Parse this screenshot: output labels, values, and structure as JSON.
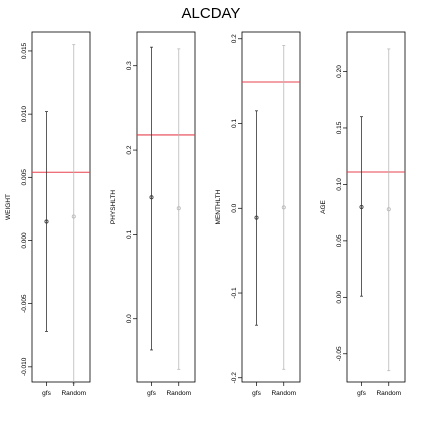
{
  "chart_data": {
    "type": "interval",
    "title": "ALCDAY",
    "categories": [
      "gfs",
      "Random"
    ],
    "panels": [
      {
        "ylabel": "WEIGHT",
        "ylim": [
          -0.0112,
          0.0165
        ],
        "yticks": [
          -0.01,
          -0.005,
          0.0,
          0.005,
          0.01,
          0.015
        ],
        "ytick_labels": [
          "-0.010",
          "-0.005",
          "0.000",
          "0.005",
          "0.010",
          "0.015"
        ],
        "reference_line": 0.0054,
        "intervals": [
          {
            "name": "gfs",
            "low": -0.0072,
            "mid": 0.0015,
            "high": 0.0102
          },
          {
            "name": "Random",
            "low": -0.0113,
            "mid": 0.0019,
            "high": 0.0155
          }
        ]
      },
      {
        "ylabel": "PHYSHLTH",
        "ylim": [
          -0.075,
          0.34
        ],
        "yticks": [
          0.0,
          0.1,
          0.2,
          0.3
        ],
        "ytick_labels": [
          "0.0",
          "0.1",
          "0.2",
          "0.3"
        ],
        "reference_line": 0.218,
        "intervals": [
          {
            "name": "gfs",
            "low": -0.037,
            "mid": 0.144,
            "high": 0.322
          },
          {
            "name": "Random",
            "low": -0.06,
            "mid": 0.131,
            "high": 0.32
          }
        ]
      },
      {
        "ylabel": "MENTHLTH",
        "ylim": [
          -0.205,
          0.208
        ],
        "yticks": [
          -0.2,
          -0.1,
          0.0,
          0.1,
          0.2
        ],
        "ytick_labels": [
          "-0.2",
          "-0.1",
          "0.0",
          "0.1",
          "0.2"
        ],
        "reference_line": 0.149,
        "intervals": [
          {
            "name": "gfs",
            "low": -0.138,
            "mid": -0.011,
            "high": 0.115
          },
          {
            "name": "Random",
            "low": -0.19,
            "mid": 0.001,
            "high": 0.192
          }
        ]
      },
      {
        "ylabel": "AGE",
        "ylim": [
          -0.075,
          0.235
        ],
        "yticks": [
          -0.05,
          0.0,
          0.05,
          0.1,
          0.15,
          0.2
        ],
        "ytick_labels": [
          "-0.05",
          "0.00",
          "0.05",
          "0.10",
          "0.15",
          "0.20"
        ],
        "reference_line": 0.111,
        "intervals": [
          {
            "name": "gfs",
            "low": 0.001,
            "mid": 0.08,
            "high": 0.16
          },
          {
            "name": "Random",
            "low": -0.065,
            "mid": 0.078,
            "high": 0.22
          }
        ]
      }
    ],
    "colors": {
      "gfs": "#333333",
      "Random": "#b8b8b8",
      "reference_line": "#e8404f",
      "frame": "#000000"
    }
  }
}
